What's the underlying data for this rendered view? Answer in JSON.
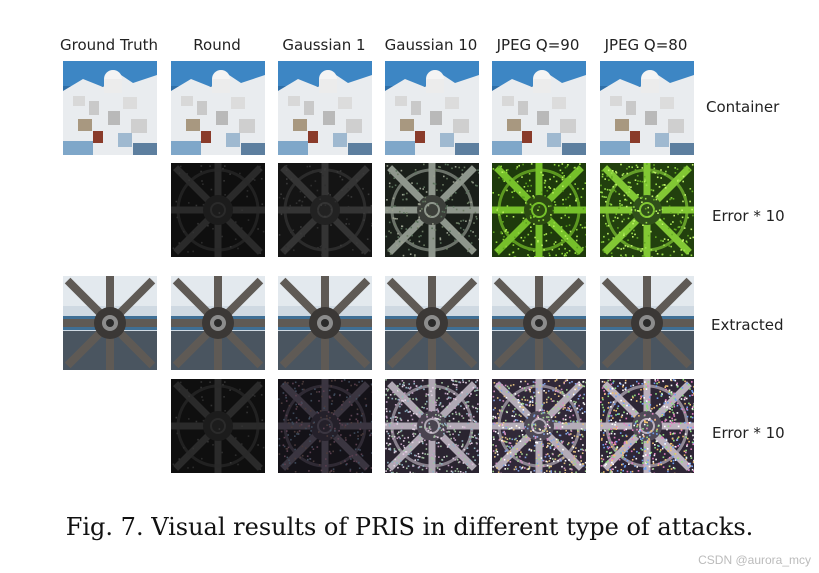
{
  "figure": {
    "columns": [
      "Ground Truth",
      "Round",
      "Gaussian 1",
      "Gaussian 10",
      "JPEG Q=90",
      "JPEG Q=80"
    ],
    "rows": [
      "Container",
      "Error * 10",
      "Extracted",
      "Error * 10"
    ],
    "caption": "Fig. 7. Visual results of PRIS in different type of attacks.",
    "watermark": "CSDN @aurora_mcy"
  },
  "images": {
    "row_kinds": [
      "santorini",
      "error",
      "wheel",
      "error"
    ],
    "error_styles": {
      "container": [
        "none",
        "dark",
        "dark-2",
        "gray",
        "green",
        "green-2"
      ],
      "extracted": [
        "none",
        "dark",
        "dark-noise",
        "noisy",
        "noisy-color",
        "noisy-color-2"
      ]
    }
  }
}
